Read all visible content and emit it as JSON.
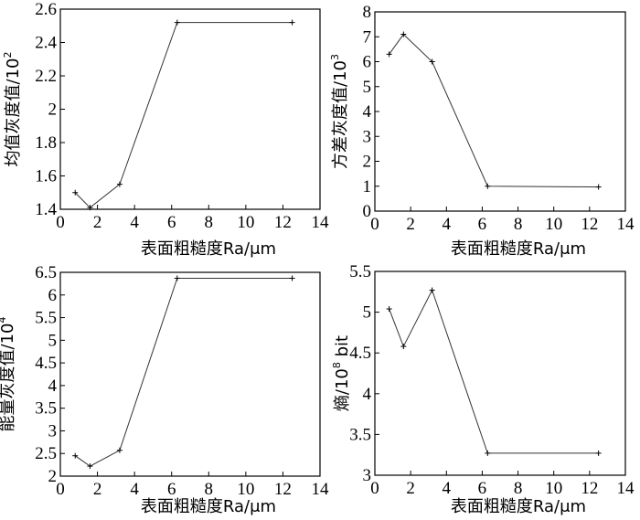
{
  "chart_data": [
    {
      "type": "line",
      "xlabel": "表面粗糙度Ra/μm",
      "ylabel": "均值灰度值/10",
      "ylabel_exp": "2",
      "xlim": [
        0,
        14
      ],
      "ylim": [
        1.4,
        2.6
      ],
      "xticks": [
        "0",
        "2",
        "4",
        "6",
        "8",
        "10",
        "12",
        "14"
      ],
      "yticks": [
        "1.4",
        "1.6",
        "1.8",
        "2",
        "2.2",
        "2.4",
        "2.6"
      ],
      "grid": false,
      "series": [
        {
          "x": [
            0.8,
            1.6,
            3.2,
            6.3,
            12.5
          ],
          "y": [
            1.5,
            1.41,
            1.55,
            2.52,
            2.52
          ]
        }
      ]
    },
    {
      "type": "line",
      "xlabel": "表面粗糙度Ra/μm",
      "ylabel": "方差灰度值/10",
      "ylabel_exp": "3",
      "xlim": [
        0,
        14
      ],
      "ylim": [
        0,
        8
      ],
      "xticks": [
        "0",
        "2",
        "4",
        "6",
        "8",
        "10",
        "12",
        "14"
      ],
      "yticks": [
        "0",
        "1",
        "2",
        "3",
        "4",
        "5",
        "6",
        "7",
        "8"
      ],
      "grid": false,
      "series": [
        {
          "x": [
            0.8,
            1.6,
            3.2,
            6.3,
            12.5
          ],
          "y": [
            6.3,
            7.1,
            6.0,
            1.0,
            0.97
          ]
        }
      ]
    },
    {
      "type": "line",
      "xlabel": "表面粗糙度Ra/μm",
      "ylabel": "能量灰度值/10",
      "ylabel_exp": "4",
      "xlim": [
        0,
        14
      ],
      "ylim": [
        2,
        6.5
      ],
      "xticks": [
        "0",
        "2",
        "4",
        "6",
        "8",
        "10",
        "12",
        "14"
      ],
      "yticks": [
        "2",
        "2.5",
        "3",
        "3.5",
        "4",
        "4.5",
        "5",
        "5.5",
        "6",
        "6.5"
      ],
      "grid": false,
      "series": [
        {
          "x": [
            0.8,
            1.6,
            3.2,
            6.3,
            12.5
          ],
          "y": [
            2.45,
            2.22,
            2.57,
            6.37,
            6.37
          ]
        }
      ]
    },
    {
      "type": "line",
      "xlabel": "表面粗糙度Ra/μm",
      "ylabel": "熵/10",
      "ylabel_exp": "8",
      "ylabel_unit": " bit",
      "xlim": [
        0,
        14
      ],
      "ylim": [
        3,
        5.5
      ],
      "xticks": [
        "0",
        "2",
        "4",
        "6",
        "8",
        "10",
        "12",
        "14"
      ],
      "yticks": [
        "3",
        "3.5",
        "4",
        "4.5",
        "5",
        "5.5"
      ],
      "grid": false,
      "series": [
        {
          "x": [
            0.8,
            1.6,
            3.2,
            6.3,
            12.5
          ],
          "y": [
            5.04,
            4.58,
            5.27,
            3.27,
            3.27
          ]
        }
      ]
    }
  ]
}
